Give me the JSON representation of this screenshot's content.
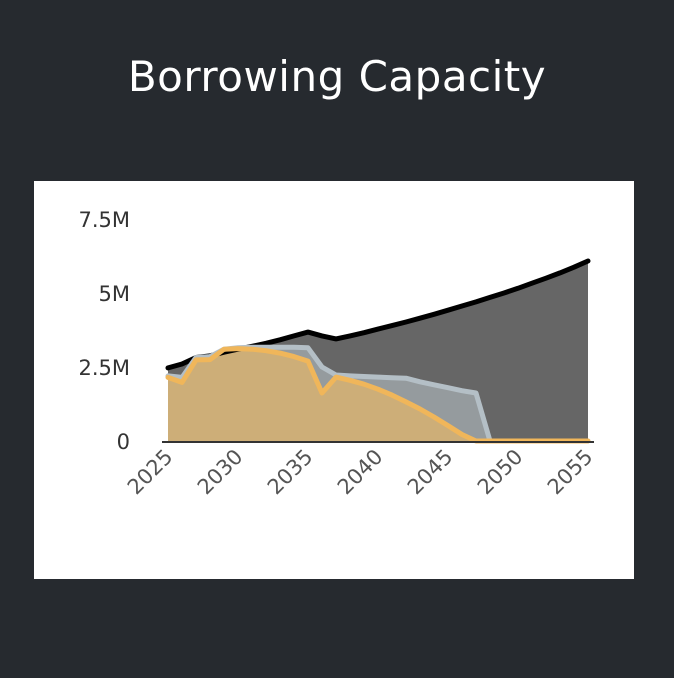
{
  "title": "Borrowing Capacity",
  "colors": {
    "background": "#262a2f",
    "card": "#ffffff",
    "series_1_fill": "#666666",
    "series_1_line": "#000000",
    "series_2_fill": "#959b9e",
    "series_2_line": "#b4bfc6",
    "series_3_fill": "#cdae78",
    "series_3_line": "#f0b65a"
  },
  "chart_data": {
    "type": "area",
    "title": "Borrowing Capacity",
    "xlabel": "",
    "ylabel": "",
    "xlim": [
      2025,
      2055
    ],
    "ylim": [
      0,
      7.5
    ],
    "y_unit": "M",
    "grid": false,
    "legend": "none",
    "x_tick_labels": [
      "2025",
      "2030",
      "2035",
      "2040",
      "2045",
      "2050",
      "2055"
    ],
    "y_tick_labels": [
      "0",
      "2.5M",
      "5M",
      "7.5M"
    ],
    "y_tick_values": [
      0,
      2.5,
      5,
      7.5
    ],
    "x": [
      2025,
      2026,
      2027,
      2028,
      2029,
      2030,
      2031,
      2032,
      2033,
      2034,
      2035,
      2036,
      2037,
      2038,
      2039,
      2040,
      2041,
      2042,
      2043,
      2044,
      2045,
      2046,
      2047,
      2048,
      2049,
      2050,
      2051,
      2052,
      2053,
      2054,
      2055
    ],
    "series": [
      {
        "values": [
          2.47,
          2.6,
          2.82,
          2.88,
          3.0,
          3.1,
          3.2,
          3.3,
          3.42,
          3.55,
          3.68,
          3.55,
          3.45,
          3.55,
          3.66,
          3.78,
          3.9,
          4.02,
          4.15,
          4.28,
          4.42,
          4.56,
          4.7,
          4.85,
          5.0,
          5.16,
          5.33,
          5.5,
          5.68,
          5.87,
          6.08
        ]
      },
      {
        "values": [
          2.2,
          2.15,
          2.82,
          2.85,
          3.1,
          3.15,
          3.17,
          3.17,
          3.17,
          3.17,
          3.15,
          2.5,
          2.23,
          2.2,
          2.18,
          2.16,
          2.14,
          2.12,
          2.0,
          1.9,
          1.8,
          1.7,
          1.62,
          0,
          0,
          0,
          0,
          0,
          0,
          0,
          0
        ]
      },
      {
        "values": [
          2.15,
          1.98,
          2.74,
          2.75,
          3.1,
          3.12,
          3.1,
          3.05,
          2.97,
          2.85,
          2.7,
          1.62,
          2.16,
          2.05,
          1.92,
          1.75,
          1.55,
          1.32,
          1.08,
          0.81,
          0.52,
          0.22,
          0,
          0,
          0,
          0,
          0,
          0,
          0,
          0,
          0
        ]
      }
    ]
  }
}
